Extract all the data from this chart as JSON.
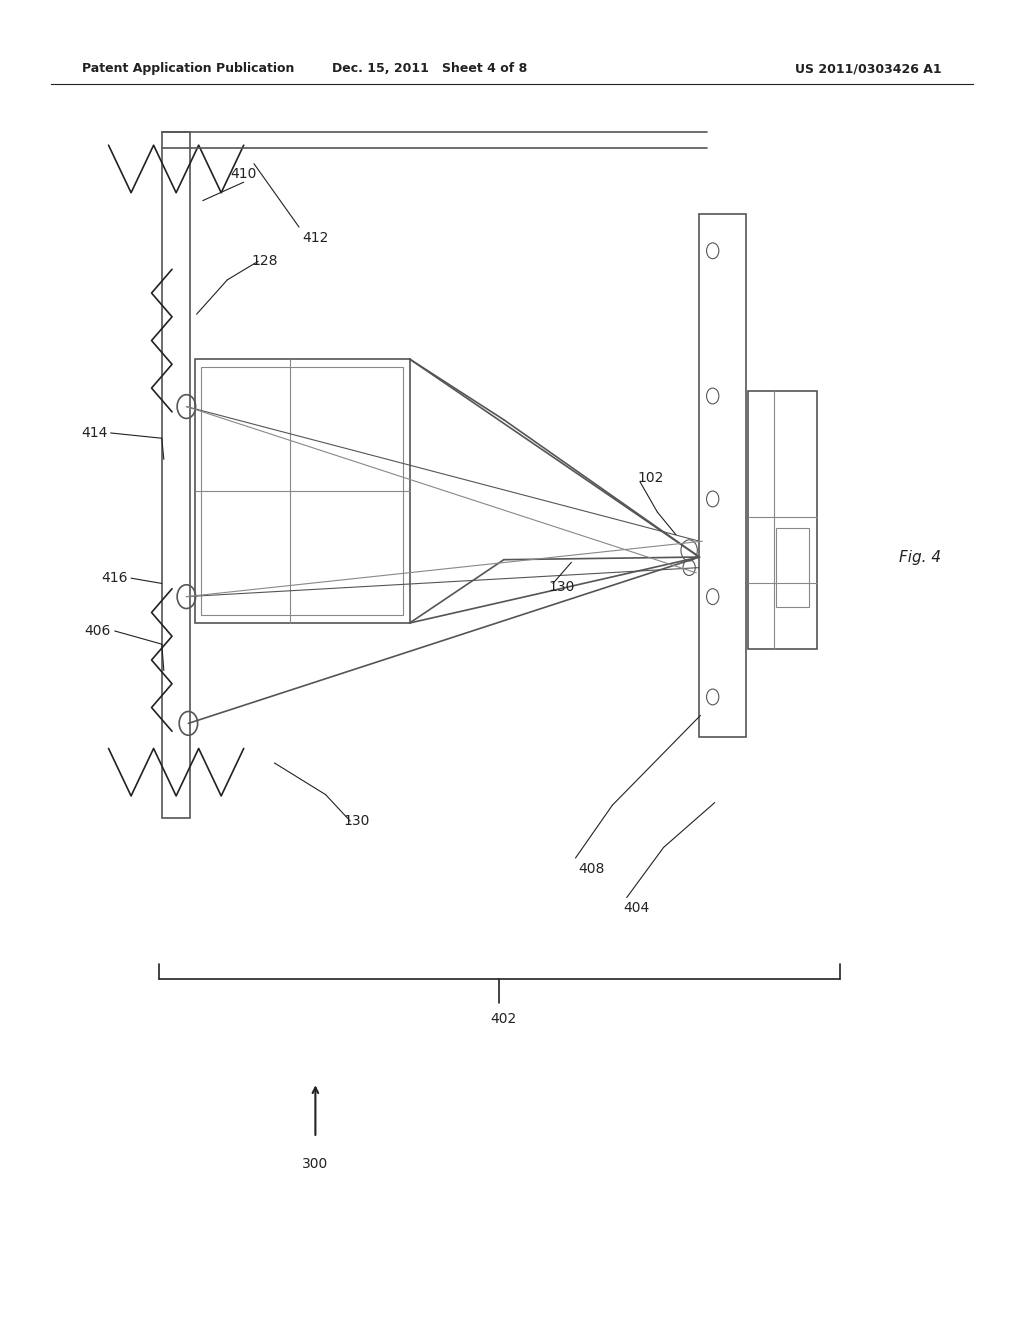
{
  "bg_color": "#ffffff",
  "header_left": "Patent Application Publication",
  "header_mid": "Dec. 15, 2011   Sheet 4 of 8",
  "header_right": "US 2011/0303426 A1",
  "fig_label": "Fig. 4",
  "dark": "#222222",
  "gray": "#555555",
  "lgray": "#888888"
}
